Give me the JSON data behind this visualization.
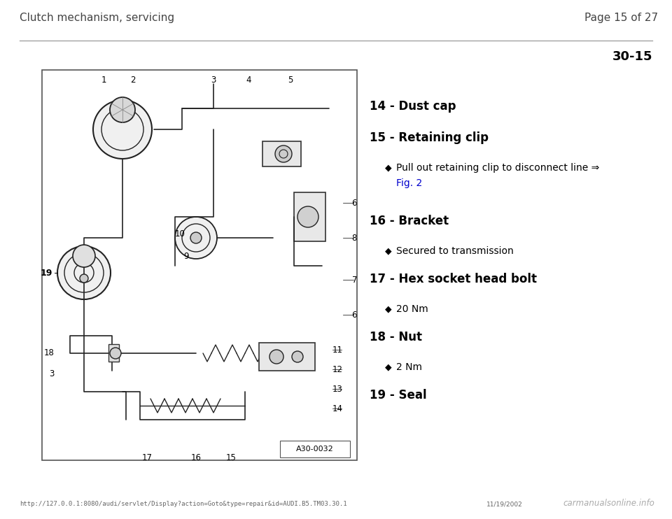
{
  "bg_color": "#ffffff",
  "header_left": "Clutch mechanism, servicing",
  "header_right": "Page 15 of 27",
  "section_number": "30-15",
  "footer_url": "http://127.0.0.1:8080/audi/servlet/Display?action=Goto&type=repair&id=AUDI.B5.TM03.30.1",
  "footer_date": "11/19/2002",
  "footer_logo": "carmanualsonline.info",
  "items": [
    {
      "number": "14",
      "label": "Dust cap",
      "sub_items": []
    },
    {
      "number": "15",
      "label": "Retaining clip",
      "sub_items": [
        {
          "text": "Pull out retaining clip to disconnect line ⇒",
          "link": "Fig. 2",
          "link_color": "#0000cc"
        }
      ]
    },
    {
      "number": "16",
      "label": "Bracket",
      "sub_items": [
        {
          "text": "Secured to transmission",
          "link": null
        }
      ]
    },
    {
      "number": "17",
      "label": "Hex socket head bolt",
      "sub_items": [
        {
          "text": "20 Nm",
          "link": null
        }
      ]
    },
    {
      "number": "18",
      "label": "Nut",
      "sub_items": [
        {
          "text": "2 Nm",
          "link": null
        }
      ]
    },
    {
      "number": "19",
      "label": "Seal",
      "sub_items": []
    }
  ],
  "diagram_label": "A30-0032"
}
